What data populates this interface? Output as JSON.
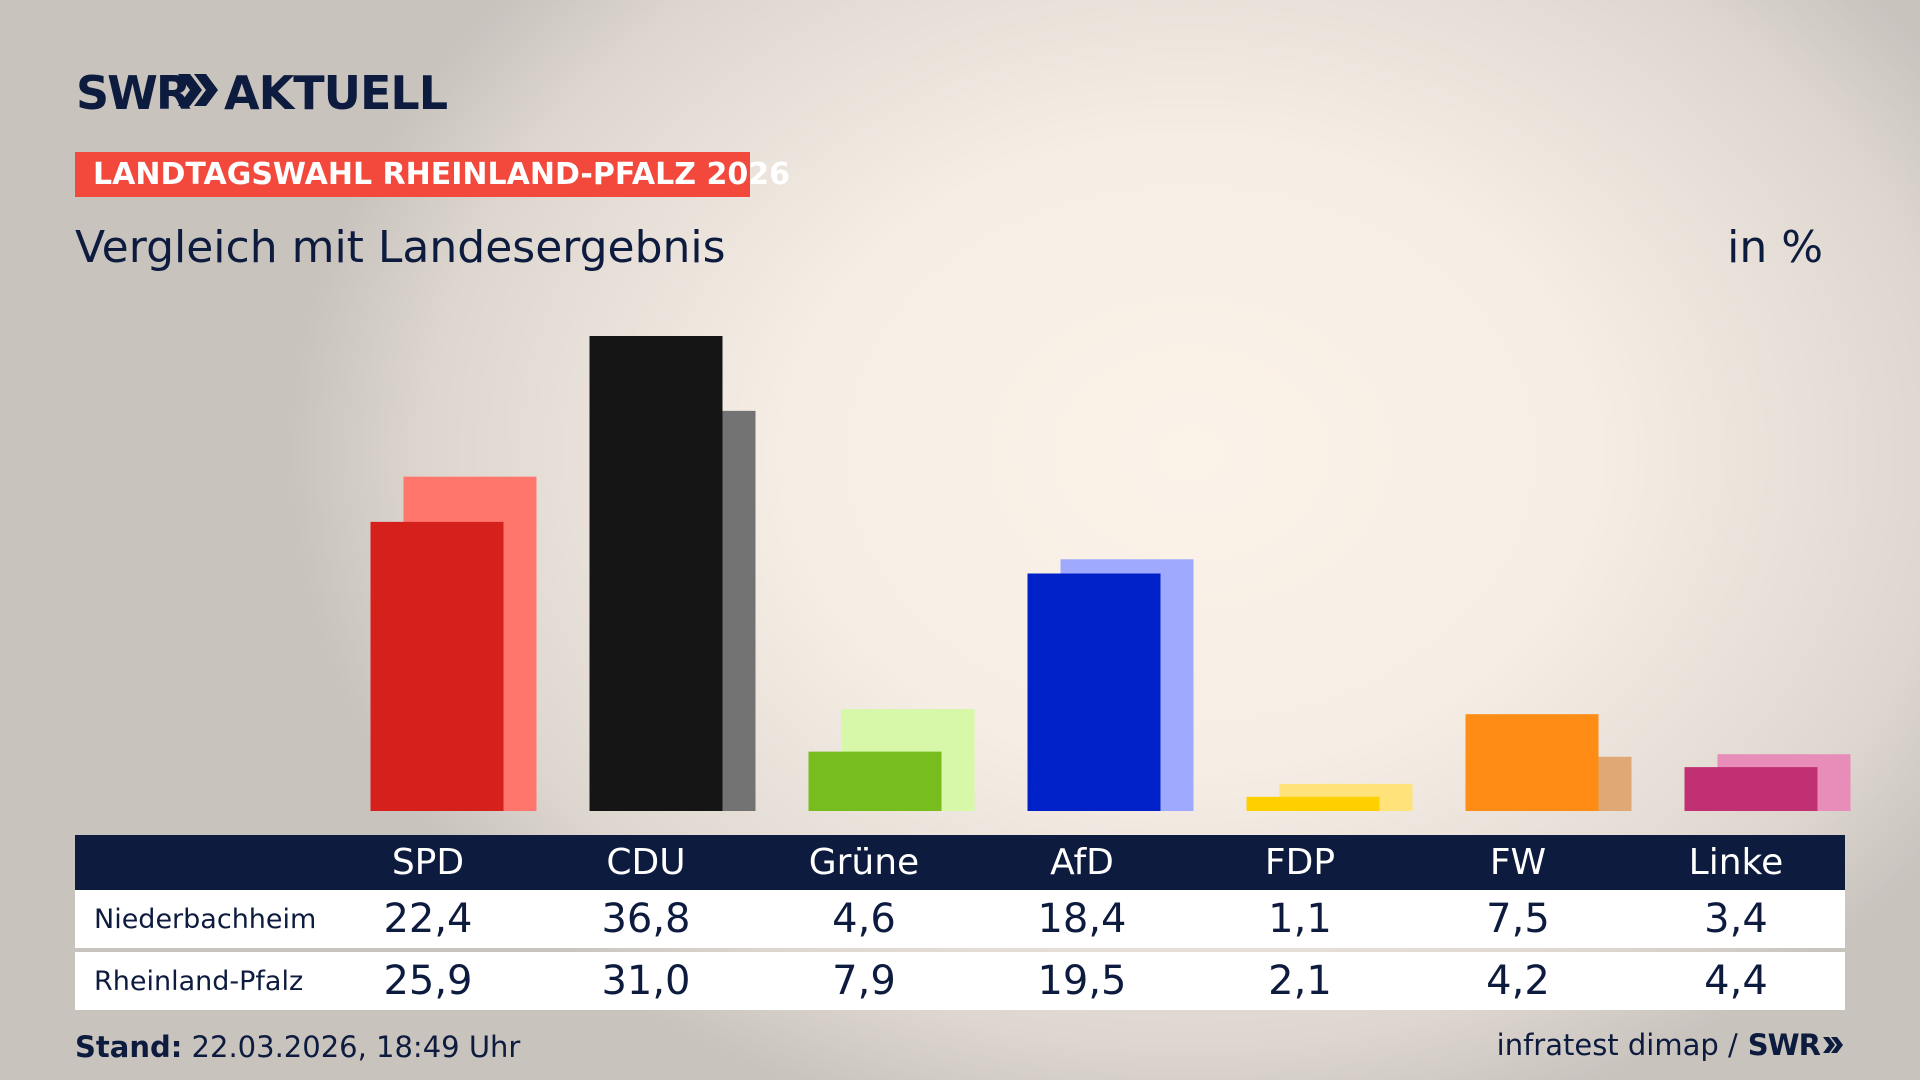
{
  "header": {
    "brand_prefix": "SWR",
    "brand_name": "AKTUELL",
    "topic": "LANDTAGSWAHL RHEINLAND-PFALZ 2026",
    "title": "Vergleich mit Landesergebnis",
    "unit": "in %"
  },
  "colors": {
    "navy": "#0d1b3e",
    "topic_bg": "#f2493c"
  },
  "chart_data": {
    "type": "bar",
    "categories": [
      "SPD",
      "CDU",
      "Grüne",
      "AfD",
      "FDP",
      "FW",
      "Linke"
    ],
    "series": [
      {
        "name": "Niederbachheim",
        "values": [
          22.4,
          36.8,
          4.6,
          18.4,
          1.1,
          7.5,
          3.4
        ],
        "colors": [
          "#d6201c",
          "#151515",
          "#78bd1e",
          "#0021c8",
          "#ffd000",
          "#ff8c14",
          "#c03073"
        ]
      },
      {
        "name": "Rheinland-Pfalz",
        "values": [
          25.9,
          31.0,
          7.9,
          19.5,
          2.1,
          4.2,
          4.4
        ],
        "colors": [
          "#ff766d",
          "#737373",
          "#d6f8a8",
          "#9faaff",
          "#ffe37a",
          "#dfa874",
          "#e88cba"
        ]
      }
    ],
    "ylim": [
      0,
      36.8
    ],
    "grid": false,
    "legend": "table below chart"
  },
  "table": {
    "row_labels": [
      "Niederbachheim",
      "Rheinland-Pfalz"
    ],
    "rows": [
      [
        "22,4",
        "36,8",
        "4,6",
        "18,4",
        "1,1",
        "7,5",
        "3,4"
      ],
      [
        "25,9",
        "31,0",
        "7,9",
        "19,5",
        "2,1",
        "4,2",
        "4,4"
      ]
    ]
  },
  "footer": {
    "stand_label": "Stand:",
    "stand_value": "22.03.2026, 18:49 Uhr",
    "source": "infratest dimap /",
    "source_brand": "SWR"
  }
}
